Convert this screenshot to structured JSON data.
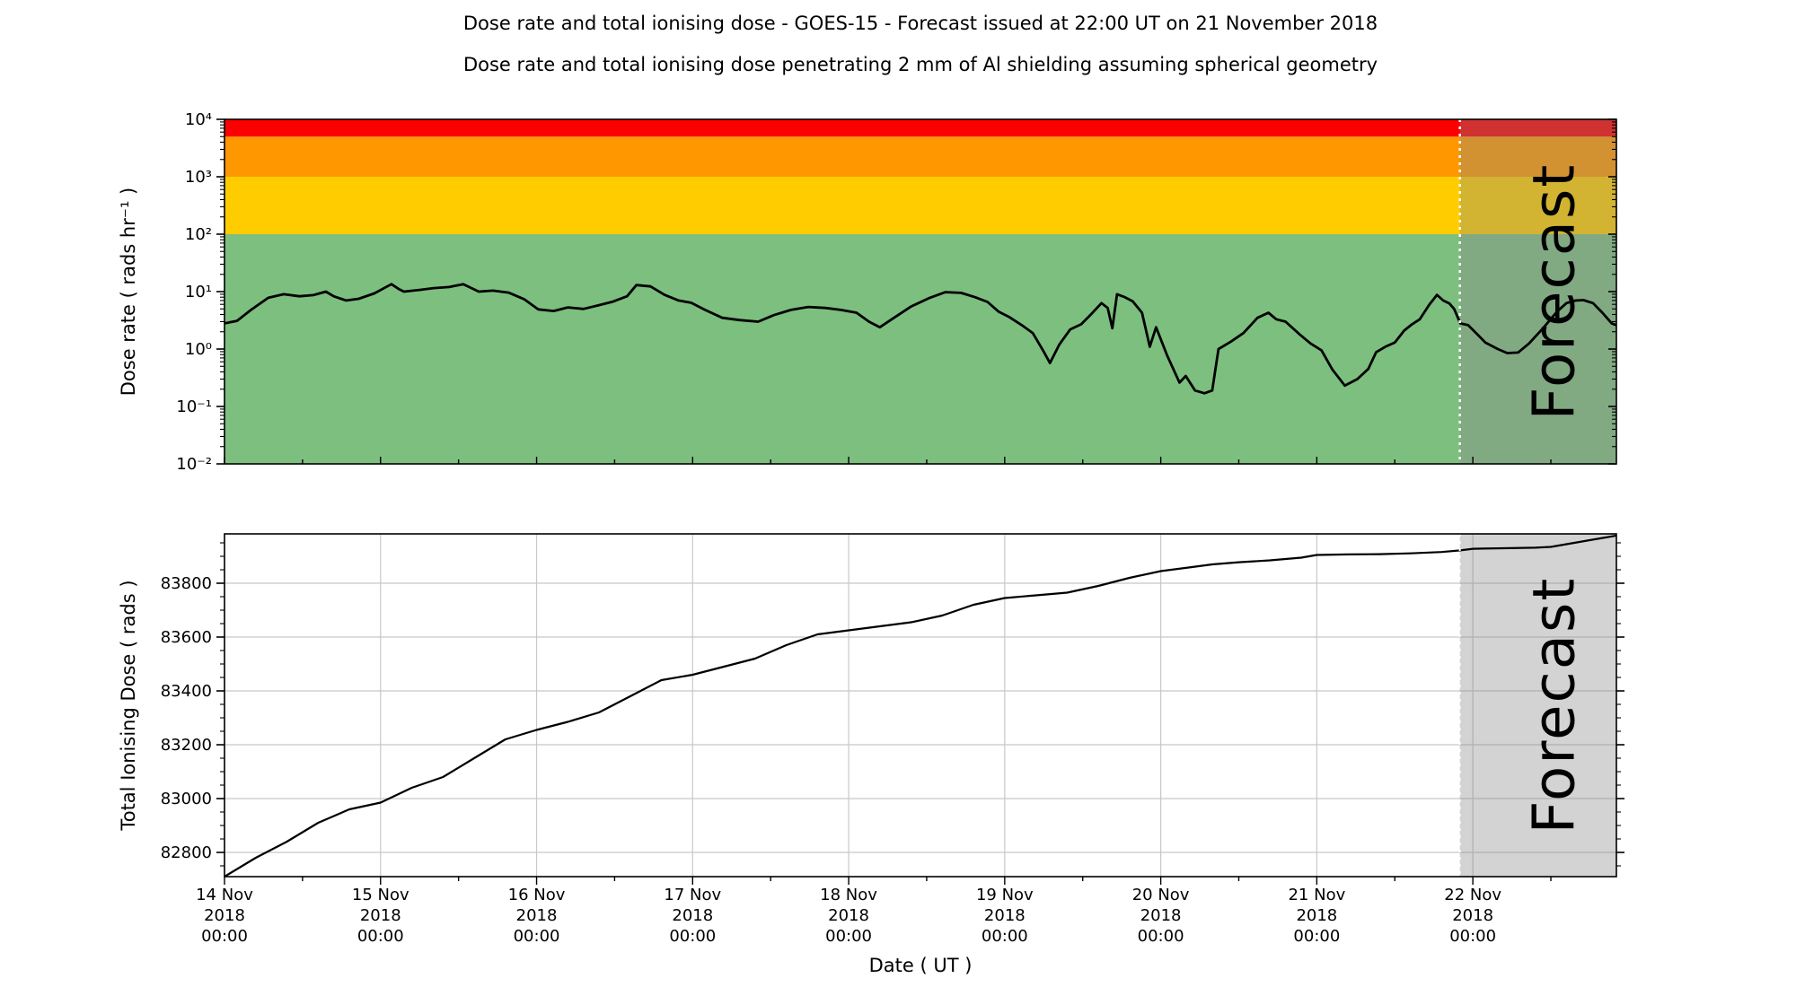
{
  "title": "Dose rate and total ionising dose - GOES-15 - Forecast issued at 22:00 UT on 21 November 2018",
  "subtitle": "Dose rate and total ionising dose penetrating 2 mm of Al shielding assuming spherical geometry",
  "forecast": {
    "label": "Forecast",
    "start_day": 7.9167,
    "issued": "22:00 UT on 21 November 2018"
  },
  "x_axis": {
    "label": "Date ( UT )",
    "ticks": [
      {
        "d": 0,
        "date": "14 Nov",
        "year": "2018",
        "time": "00:00"
      },
      {
        "d": 1,
        "date": "15 Nov",
        "year": "2018",
        "time": "00:00"
      },
      {
        "d": 2,
        "date": "16 Nov",
        "year": "2018",
        "time": "00:00"
      },
      {
        "d": 3,
        "date": "17 Nov",
        "year": "2018",
        "time": "00:00"
      },
      {
        "d": 4,
        "date": "18 Nov",
        "year": "2018",
        "time": "00:00"
      },
      {
        "d": 5,
        "date": "19 Nov",
        "year": "2018",
        "time": "00:00"
      },
      {
        "d": 6,
        "date": "20 Nov",
        "year": "2018",
        "time": "00:00"
      },
      {
        "d": 7,
        "date": "21 Nov",
        "year": "2018",
        "time": "00:00"
      },
      {
        "d": 8,
        "date": "22 Nov",
        "year": "2018",
        "time": "00:00"
      }
    ],
    "range_days": [
      0,
      8.92
    ]
  },
  "top_chart": {
    "ylabel": "Dose rate ( rads hr⁻¹ )",
    "yticks": [
      {
        "label": "10⁻²",
        "value": -2
      },
      {
        "label": "10⁻¹",
        "value": -1
      },
      {
        "label": "10⁰",
        "value": 0
      },
      {
        "label": "10¹",
        "value": 1
      },
      {
        "label": "10²",
        "value": 2
      },
      {
        "label": "10³",
        "value": 3
      },
      {
        "label": "10⁴",
        "value": 4
      }
    ],
    "ylim_log": [
      -2,
      4
    ]
  },
  "bottom_chart": {
    "ylabel": "Total Ionising Dose ( rads )",
    "yticks": [
      {
        "label": "82800",
        "value": 82800
      },
      {
        "label": "83000",
        "value": 83000
      },
      {
        "label": "83200",
        "value": 83200
      },
      {
        "label": "83400",
        "value": 83400
      },
      {
        "label": "83600",
        "value": 83600
      },
      {
        "label": "83800",
        "value": 83800
      }
    ],
    "ylim": [
      82710,
      83983
    ]
  },
  "colors": {
    "band_red": "#fb0000",
    "band_orange": "#ff9800",
    "band_yellow": "#ffcc00",
    "band_green": "#7dbf7f",
    "forecast_overlay": "rgba(135,135,135,0.37)",
    "forecast_text": "rgba(90,90,90,0.42)",
    "grid": "#c8c8c8",
    "line": "#000000",
    "dotted_line": "#ffffff"
  },
  "chart_data": [
    {
      "type": "line",
      "title": "Dose rate",
      "ylabel": "Dose rate ( rads hr-1 )",
      "y_scale": "log",
      "ylim": [
        0.01,
        10000
      ],
      "bands": [
        {
          "name": "green",
          "from": 0.01,
          "to": 100,
          "color": "#7dbf7f"
        },
        {
          "name": "yellow",
          "from": 100,
          "to": 1000,
          "color": "#ffcc00"
        },
        {
          "name": "orange",
          "from": 1000,
          "to": 5000,
          "color": "#ff9800"
        },
        {
          "name": "red",
          "from": 5000,
          "to": 10000,
          "color": "#fb0000"
        }
      ],
      "x_unit": "days since 14 Nov 2018 00:00 UT",
      "points": [
        [
          0.0,
          2.8
        ],
        [
          0.08,
          3.1
        ],
        [
          0.17,
          4.8
        ],
        [
          0.28,
          7.8
        ],
        [
          0.38,
          9.0
        ],
        [
          0.48,
          8.3
        ],
        [
          0.57,
          8.7
        ],
        [
          0.65,
          10.0
        ],
        [
          0.7,
          8.3
        ],
        [
          0.78,
          7.0
        ],
        [
          0.86,
          7.5
        ],
        [
          0.96,
          9.3
        ],
        [
          1.07,
          13.5
        ],
        [
          1.12,
          11.0
        ],
        [
          1.15,
          10.0
        ],
        [
          1.25,
          10.7
        ],
        [
          1.34,
          11.5
        ],
        [
          1.44,
          12.0
        ],
        [
          1.53,
          13.5
        ],
        [
          1.63,
          10.0
        ],
        [
          1.72,
          10.4
        ],
        [
          1.82,
          9.6
        ],
        [
          1.92,
          7.4
        ],
        [
          2.01,
          4.9
        ],
        [
          2.11,
          4.6
        ],
        [
          2.2,
          5.3
        ],
        [
          2.3,
          5.0
        ],
        [
          2.4,
          5.8
        ],
        [
          2.49,
          6.7
        ],
        [
          2.58,
          8.3
        ],
        [
          2.64,
          13.0
        ],
        [
          2.73,
          12.3
        ],
        [
          2.82,
          8.8
        ],
        [
          2.91,
          7.0
        ],
        [
          2.99,
          6.4
        ],
        [
          3.08,
          4.8
        ],
        [
          3.19,
          3.5
        ],
        [
          3.3,
          3.2
        ],
        [
          3.42,
          3.0
        ],
        [
          3.52,
          3.9
        ],
        [
          3.63,
          4.8
        ],
        [
          3.74,
          5.4
        ],
        [
          3.85,
          5.2
        ],
        [
          3.95,
          4.8
        ],
        [
          4.05,
          4.3
        ],
        [
          4.13,
          3.0
        ],
        [
          4.2,
          2.4
        ],
        [
          4.29,
          3.5
        ],
        [
          4.4,
          5.5
        ],
        [
          4.52,
          7.8
        ],
        [
          4.62,
          9.8
        ],
        [
          4.72,
          9.5
        ],
        [
          4.81,
          8.0
        ],
        [
          4.89,
          6.6
        ],
        [
          4.96,
          4.5
        ],
        [
          5.03,
          3.6
        ],
        [
          5.11,
          2.6
        ],
        [
          5.18,
          1.9
        ],
        [
          5.25,
          0.9
        ],
        [
          5.29,
          0.57
        ],
        [
          5.35,
          1.2
        ],
        [
          5.42,
          2.2
        ],
        [
          5.49,
          2.7
        ],
        [
          5.56,
          4.2
        ],
        [
          5.62,
          6.3
        ],
        [
          5.66,
          5.2
        ],
        [
          5.69,
          2.3
        ],
        [
          5.72,
          9.0
        ],
        [
          5.77,
          8.0
        ],
        [
          5.82,
          6.8
        ],
        [
          5.88,
          4.3
        ],
        [
          5.93,
          1.1
        ],
        [
          5.97,
          2.4
        ],
        [
          6.04,
          0.78
        ],
        [
          6.12,
          0.26
        ],
        [
          6.16,
          0.34
        ],
        [
          6.22,
          0.19
        ],
        [
          6.28,
          0.17
        ],
        [
          6.33,
          0.19
        ],
        [
          6.37,
          1.0
        ],
        [
          6.45,
          1.35
        ],
        [
          6.53,
          1.9
        ],
        [
          6.62,
          3.5
        ],
        [
          6.69,
          4.3
        ],
        [
          6.74,
          3.3
        ],
        [
          6.8,
          3.0
        ],
        [
          6.89,
          1.8
        ],
        [
          6.96,
          1.25
        ],
        [
          7.03,
          0.95
        ],
        [
          7.1,
          0.44
        ],
        [
          7.18,
          0.23
        ],
        [
          7.26,
          0.3
        ],
        [
          7.33,
          0.45
        ],
        [
          7.38,
          0.88
        ],
        [
          7.44,
          1.1
        ],
        [
          7.5,
          1.3
        ],
        [
          7.56,
          2.1
        ],
        [
          7.61,
          2.7
        ],
        [
          7.66,
          3.3
        ],
        [
          7.72,
          5.9
        ],
        [
          7.77,
          8.8
        ],
        [
          7.81,
          7.0
        ],
        [
          7.85,
          6.2
        ],
        [
          7.88,
          5.0
        ],
        [
          7.92,
          2.8
        ],
        [
          7.97,
          2.6
        ],
        [
          8.03,
          1.8
        ],
        [
          8.08,
          1.3
        ],
        [
          8.16,
          1.0
        ],
        [
          8.22,
          0.85
        ],
        [
          8.29,
          0.87
        ],
        [
          8.36,
          1.25
        ],
        [
          8.45,
          2.3
        ],
        [
          8.54,
          4.5
        ],
        [
          8.6,
          6.3
        ],
        [
          8.66,
          7.0
        ],
        [
          8.71,
          7.1
        ],
        [
          8.77,
          6.3
        ],
        [
          8.83,
          4.3
        ],
        [
          8.89,
          2.8
        ],
        [
          8.92,
          2.6
        ]
      ]
    },
    {
      "type": "line",
      "title": "Total Ionising Dose",
      "ylabel": "Total Ionising Dose ( rads )",
      "y_scale": "linear",
      "ylim": [
        82710,
        83983
      ],
      "x_unit": "days since 14 Nov 2018 00:00 UT",
      "points": [
        [
          0.0,
          82710
        ],
        [
          0.2,
          82780
        ],
        [
          0.4,
          82840
        ],
        [
          0.6,
          82910
        ],
        [
          0.8,
          82960
        ],
        [
          1.0,
          82985
        ],
        [
          1.2,
          83040
        ],
        [
          1.4,
          83080
        ],
        [
          1.6,
          83150
        ],
        [
          1.8,
          83220
        ],
        [
          2.0,
          83255
        ],
        [
          2.2,
          83285
        ],
        [
          2.4,
          83320
        ],
        [
          2.6,
          83380
        ],
        [
          2.8,
          83440
        ],
        [
          3.0,
          83460
        ],
        [
          3.2,
          83490
        ],
        [
          3.4,
          83520
        ],
        [
          3.6,
          83570
        ],
        [
          3.8,
          83610
        ],
        [
          4.0,
          83625
        ],
        [
          4.2,
          83640
        ],
        [
          4.4,
          83655
        ],
        [
          4.6,
          83680
        ],
        [
          4.8,
          83720
        ],
        [
          5.0,
          83745
        ],
        [
          5.2,
          83755
        ],
        [
          5.4,
          83765
        ],
        [
          5.6,
          83790
        ],
        [
          5.8,
          83820
        ],
        [
          6.0,
          83845
        ],
        [
          6.2,
          83860
        ],
        [
          6.33,
          83870
        ],
        [
          6.5,
          83878
        ],
        [
          6.7,
          83885
        ],
        [
          6.9,
          83895
        ],
        [
          7.0,
          83905
        ],
        [
          7.2,
          83907
        ],
        [
          7.4,
          83908
        ],
        [
          7.6,
          83911
        ],
        [
          7.8,
          83916
        ],
        [
          7.92,
          83922
        ],
        [
          8.0,
          83928
        ],
        [
          8.2,
          83930
        ],
        [
          8.4,
          83932
        ],
        [
          8.5,
          83935
        ],
        [
          8.65,
          83950
        ],
        [
          8.8,
          83965
        ],
        [
          8.92,
          83977
        ]
      ]
    }
  ]
}
